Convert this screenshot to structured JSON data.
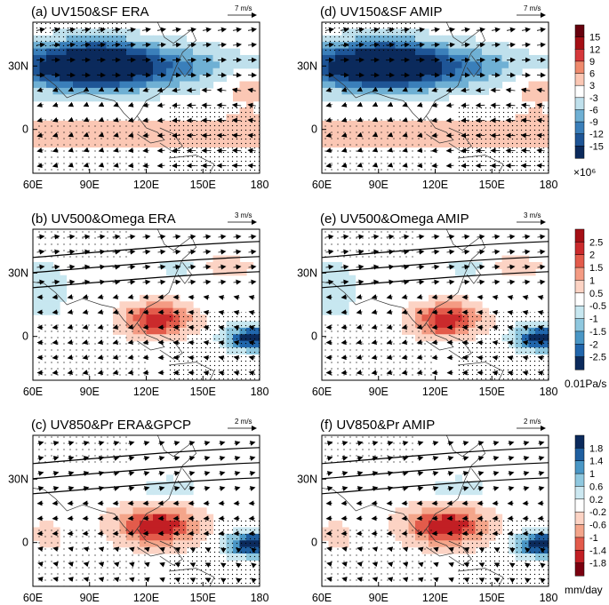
{
  "chart_data": {
    "type": "map-panels",
    "x_ticks": [
      "60E",
      "90E",
      "120E",
      "150E",
      "180"
    ],
    "y_ticks": [
      "30N",
      "0"
    ],
    "panels": [
      {
        "id": "a",
        "title": "(a) UV150&SF  ERA",
        "ref_vector": "7 m/s",
        "field": "sf"
      },
      {
        "id": "d",
        "title": "(d) UV150&SF  AMIP",
        "ref_vector": "7 m/s",
        "field": "sf"
      },
      {
        "id": "b",
        "title": "(b) UV500&Omega  ERA",
        "ref_vector": "3 m/s",
        "field": "omega"
      },
      {
        "id": "e",
        "title": "(e) UV500&Omega  AMIP",
        "ref_vector": "3 m/s",
        "field": "omega"
      },
      {
        "id": "c",
        "title": "(c) UV850&Pr  ERA&GPCP",
        "ref_vector": "2 m/s",
        "field": "pr"
      },
      {
        "id": "f",
        "title": "(f) UV850&Pr  AMIP",
        "ref_vector": "2 m/s",
        "field": "pr"
      }
    ],
    "colorbars": [
      {
        "id": "sf",
        "labels": [
          "15",
          "12",
          "9",
          "6",
          "3",
          "-3",
          "-6",
          "-9",
          "-12",
          "-15"
        ],
        "colors": [
          "#67000d",
          "#a50f15",
          "#d6383b",
          "#ef8a6d",
          "#fbc7b4",
          "#ffffff",
          "#bfe0ec",
          "#6fb0d4",
          "#3a7fba",
          "#1e5596",
          "#0b2a5c"
        ],
        "unit": "×10⁶"
      },
      {
        "id": "omega",
        "labels": [
          "2.5",
          "2",
          "1.5",
          "1",
          "0.5",
          "-0.5",
          "-1",
          "-1.5",
          "-2",
          "-2.5"
        ],
        "colors": [
          "#a50f15",
          "#cb2a2c",
          "#e35b4b",
          "#f49b83",
          "#fcd3c4",
          "#ffffff",
          "#c7e7f0",
          "#8fc8df",
          "#4a97c6",
          "#2166ac",
          "#0b2a5c"
        ],
        "unit": "0.01Pa/s"
      },
      {
        "id": "pr",
        "labels": [
          "1.8",
          "1.4",
          "1",
          "0.6",
          "0.2",
          "-0.2",
          "-0.6",
          "-1",
          "-1.4",
          "-1.8"
        ],
        "colors": [
          "#0b2a5c",
          "#1f5fa0",
          "#4a97c6",
          "#8fc8df",
          "#cce8f1",
          "#ffffff",
          "#fcd3c4",
          "#f4a58a",
          "#e35b4b",
          "#c21f24",
          "#7a0010"
        ],
        "unit": "mm/day"
      }
    ]
  }
}
